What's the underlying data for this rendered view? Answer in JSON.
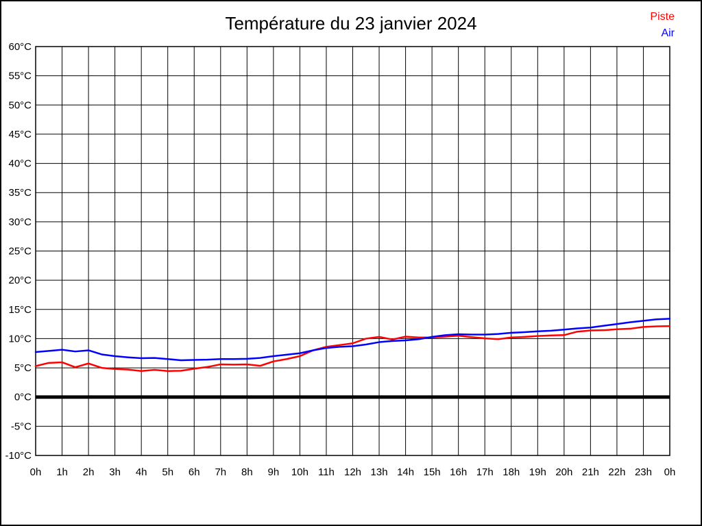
{
  "title": {
    "text": "Température du 23 janvier 2024"
  },
  "legend": [
    {
      "label": "Piste",
      "color": "#ff0000"
    },
    {
      "label": "Air",
      "color": "#0000ff"
    }
  ],
  "chart_data": {
    "type": "line",
    "title": "Température du 23 janvier 2024",
    "xlabel": "",
    "ylabel": "",
    "grid": true,
    "legend_position": "top-right",
    "xlim": [
      0,
      24
    ],
    "ylim": [
      -10,
      60
    ],
    "ytick_step": 5,
    "ytick_suffix": "°C",
    "xtick_step": 1,
    "xlabels": [
      "0h",
      "1h",
      "2h",
      "3h",
      "4h",
      "5h",
      "6h",
      "7h",
      "8h",
      "9h",
      "10h",
      "11h",
      "12h",
      "13h",
      "14h",
      "15h",
      "16h",
      "17h",
      "18h",
      "19h",
      "20h",
      "21h",
      "22h",
      "23h",
      "0h"
    ],
    "zero_line": true,
    "x": [
      0,
      0.5,
      1,
      1.5,
      2,
      2.5,
      3,
      3.5,
      4,
      4.5,
      5,
      5.5,
      6,
      6.5,
      7,
      7.5,
      8,
      8.5,
      9,
      9.5,
      10,
      10.5,
      11,
      11.5,
      12,
      12.5,
      13,
      13.5,
      14,
      14.5,
      15,
      15.5,
      16,
      16.5,
      17,
      17.5,
      18,
      18.5,
      19,
      19.5,
      20,
      20.5,
      21,
      21.5,
      22,
      22.5,
      23,
      23.5,
      24
    ],
    "series": [
      {
        "name": "Piste",
        "color": "#ff0000",
        "values": [
          5.3,
          5.85,
          5.95,
          5.1,
          5.75,
          5.0,
          4.8,
          4.7,
          4.45,
          4.65,
          4.45,
          4.5,
          4.85,
          5.15,
          5.6,
          5.55,
          5.6,
          5.35,
          6.1,
          6.5,
          7.0,
          8.0,
          8.6,
          8.9,
          9.2,
          10.0,
          10.3,
          9.85,
          10.35,
          10.2,
          10.2,
          10.35,
          10.5,
          10.25,
          10.05,
          9.9,
          10.2,
          10.3,
          10.45,
          10.55,
          10.6,
          11.2,
          11.4,
          11.45,
          11.6,
          11.7,
          12.0,
          12.1,
          12.15
        ]
      },
      {
        "name": "Air",
        "color": "#0000ff",
        "values": [
          7.7,
          7.9,
          8.1,
          7.8,
          8.0,
          7.3,
          7.0,
          6.8,
          6.65,
          6.7,
          6.5,
          6.3,
          6.35,
          6.4,
          6.5,
          6.5,
          6.55,
          6.7,
          7.0,
          7.25,
          7.5,
          8.0,
          8.4,
          8.6,
          8.7,
          9.0,
          9.4,
          9.6,
          9.7,
          9.9,
          10.3,
          10.6,
          10.75,
          10.7,
          10.7,
          10.8,
          11.0,
          11.1,
          11.25,
          11.35,
          11.55,
          11.75,
          11.9,
          12.2,
          12.5,
          12.8,
          13.05,
          13.3,
          13.4
        ]
      }
    ]
  }
}
